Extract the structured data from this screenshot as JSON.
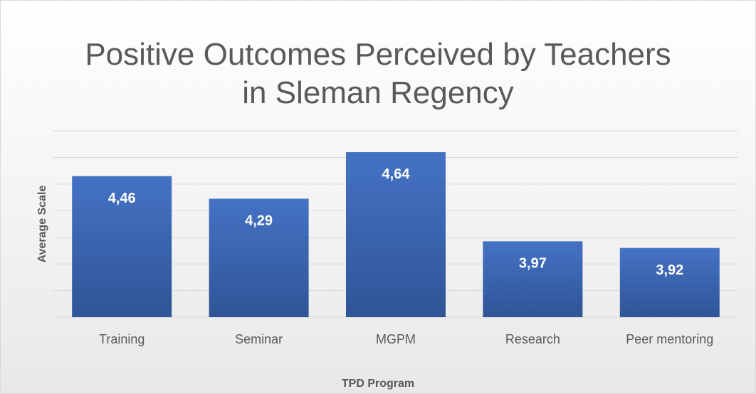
{
  "chart_data": {
    "type": "bar",
    "title": "Positive Outcomes Perceived by Teachers in Sleman Regency",
    "x_label": "TPD Program",
    "y_label": "Average Scale",
    "categories": [
      "Training",
      "Seminar",
      "MGPM",
      "Research",
      "Peer mentoring"
    ],
    "values": [
      4.46,
      4.29,
      4.64,
      3.97,
      3.92
    ],
    "value_labels": [
      "4,46",
      "4,29",
      "4,64",
      "3,97",
      "3,92"
    ],
    "color": "#4472c4",
    "ylim": [
      3.4,
      4.8
    ],
    "yticks": [
      3.4,
      3.6,
      3.8,
      4,
      4.2,
      4.4,
      4.6,
      4.8
    ],
    "grid": true
  }
}
